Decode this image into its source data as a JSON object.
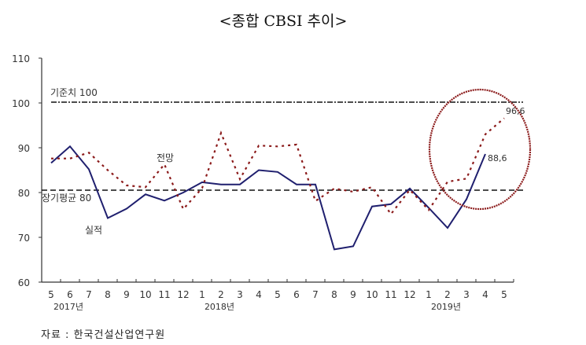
{
  "title": "<종합 CBSI 추이>",
  "source": "자료 : 한국건설산업연구원",
  "colors": {
    "actual": "#1f1f6e",
    "forecast": "#8b1a1a",
    "circle": "#8b1a1a",
    "axis": "#333333",
    "reference": "#111111"
  },
  "chart_data": {
    "type": "line",
    "title": "<종합 CBSI 추이>",
    "xlabel": "",
    "ylabel": "",
    "ylim": [
      60,
      110
    ],
    "yticks": [
      60,
      70,
      80,
      90,
      100,
      110
    ],
    "grid": false,
    "categories": [
      "5",
      "6",
      "7",
      "8",
      "9",
      "10",
      "11",
      "12",
      "1",
      "2",
      "3",
      "4",
      "5",
      "6",
      "7",
      "8",
      "9",
      "10",
      "11",
      "12",
      "1",
      "2",
      "3",
      "4",
      "5"
    ],
    "year_labels": [
      {
        "label": "2017년",
        "index": 1
      },
      {
        "label": "2018년",
        "index": 9
      },
      {
        "label": "2019년",
        "index": 21
      }
    ],
    "series": [
      {
        "name": "실적",
        "style": "solid",
        "values": [
          86.6,
          90.3,
          85.2,
          74.3,
          76.4,
          79.6,
          78.2,
          80.0,
          82.3,
          81.8,
          81.8,
          85.0,
          84.6,
          81.8,
          81.8,
          67.3,
          68.0,
          76.9,
          77.4,
          80.9,
          76.6,
          72.1,
          78.5,
          88.6,
          null
        ]
      },
      {
        "name": "전망",
        "style": "dotted",
        "values": [
          87.6,
          87.6,
          88.9,
          85.0,
          81.6,
          81.2,
          86.3,
          76.3,
          81.0,
          93.3,
          83.0,
          90.5,
          90.3,
          90.7,
          78.1,
          80.9,
          80.2,
          81.2,
          75.2,
          80.6,
          76.1,
          82.4,
          83.1,
          93.0,
          96.6
        ]
      }
    ],
    "reference_lines": [
      {
        "label": "기준치 100",
        "value": 100,
        "style": "dash-dot"
      },
      {
        "label": "장기평균 80",
        "value": 80,
        "style": "dashed"
      }
    ],
    "annotations": [
      {
        "text": "실적",
        "series": "실적"
      },
      {
        "text": "전망",
        "series": "전망"
      },
      {
        "text": "88.6",
        "label_shown": "88,6",
        "index": 23
      },
      {
        "text": "96.6",
        "label_shown": "96,6",
        "index": 24
      }
    ],
    "highlight": {
      "shape": "ellipse",
      "around_indices": [
        22,
        23,
        24
      ]
    }
  },
  "labels": {
    "ref100": "기준치 100",
    "ref80": "장기평균 80",
    "actual": "실적",
    "forecast": "전망",
    "last_actual": "88,6",
    "last_forecast": "96,6"
  }
}
